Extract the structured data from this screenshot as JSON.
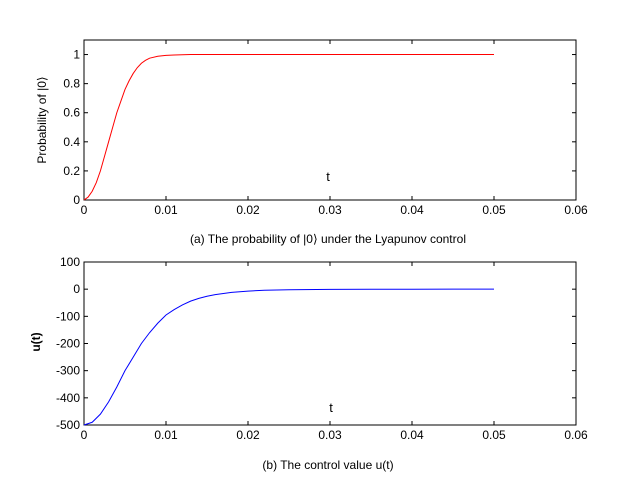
{
  "chart_data": [
    {
      "type": "line",
      "caption": "(a) The probability of |0⟩ under the Lyapunov control",
      "xlabel": "t",
      "ylabel": "Probability of |0⟩",
      "xlim": [
        0,
        0.06
      ],
      "ylim": [
        0,
        1.1
      ],
      "x_ticks": [
        0,
        0.01,
        0.02,
        0.03,
        0.04,
        0.05,
        0.06
      ],
      "x_tick_labels": [
        "0",
        "0.01",
        "0.02",
        "0.03",
        "0.04",
        "0.05",
        "0.06"
      ],
      "y_ticks": [
        0,
        0.2,
        0.4,
        0.6,
        0.8,
        1
      ],
      "y_tick_labels": [
        "0",
        "0.2",
        "0.4",
        "0.6",
        "0.8",
        "1"
      ],
      "grid": false,
      "series": [
        {
          "color": "#ff0000",
          "x": [
            0,
            0.0005,
            0.001,
            0.0015,
            0.002,
            0.0025,
            0.003,
            0.0035,
            0.004,
            0.0045,
            0.005,
            0.0055,
            0.006,
            0.0065,
            0.007,
            0.0075,
            0.008,
            0.009,
            0.01,
            0.011,
            0.012,
            0.013,
            0.014,
            0.016,
            0.02,
            0.03,
            0.04,
            0.05
          ],
          "y": [
            0,
            0.02,
            0.06,
            0.12,
            0.2,
            0.3,
            0.4,
            0.5,
            0.6,
            0.68,
            0.76,
            0.82,
            0.87,
            0.91,
            0.94,
            0.96,
            0.975,
            0.988,
            0.994,
            0.997,
            0.999,
            1.0,
            1.0,
            1.0,
            1.0,
            1.0,
            1.0,
            1.0
          ]
        }
      ]
    },
    {
      "type": "line",
      "caption": "(b) The control value u(t)",
      "xlabel": "t",
      "ylabel": "u(t)",
      "xlim": [
        0,
        0.06
      ],
      "ylim": [
        -500,
        100
      ],
      "x_ticks": [
        0,
        0.01,
        0.02,
        0.03,
        0.04,
        0.05,
        0.06
      ],
      "x_tick_labels": [
        "0",
        "0.01",
        "0.02",
        "0.03",
        "0.04",
        "0.05",
        "0.06"
      ],
      "y_ticks": [
        -500,
        -400,
        -300,
        -200,
        -100,
        0,
        100
      ],
      "y_tick_labels": [
        "-500",
        "-400",
        "-300",
        "-200",
        "-100",
        "0",
        "100"
      ],
      "grid": false,
      "series": [
        {
          "color": "#0000ff",
          "x": [
            0,
            0.001,
            0.002,
            0.003,
            0.004,
            0.005,
            0.006,
            0.007,
            0.008,
            0.009,
            0.01,
            0.011,
            0.012,
            0.013,
            0.014,
            0.015,
            0.016,
            0.018,
            0.02,
            0.022,
            0.025,
            0.03,
            0.035,
            0.04,
            0.045,
            0.05
          ],
          "y": [
            -500,
            -490,
            -460,
            -415,
            -360,
            -300,
            -250,
            -200,
            -160,
            -125,
            -95,
            -75,
            -58,
            -44,
            -34,
            -26,
            -20,
            -12,
            -7,
            -4,
            -2,
            -0.7,
            -0.3,
            -0.1,
            0,
            0
          ]
        }
      ]
    }
  ]
}
